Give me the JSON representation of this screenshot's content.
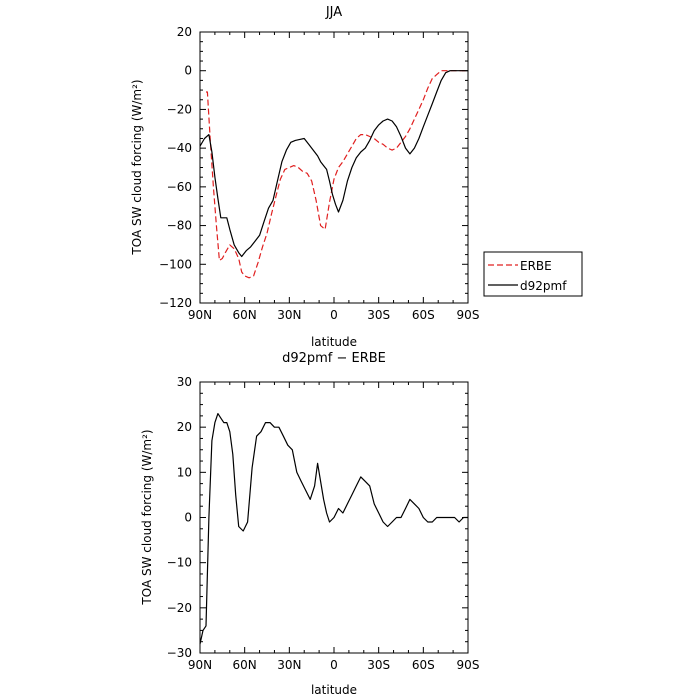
{
  "chart_data": [
    {
      "type": "line",
      "title": "JJA",
      "xlabel": "latitude",
      "ylabel": "TOA SW cloud forcing (W/m²)",
      "xlim": [
        90,
        -90
      ],
      "ylim": [
        -120,
        20
      ],
      "x_ticks": [
        90,
        60,
        30,
        0,
        -30,
        -60,
        -90
      ],
      "x_tick_labels": [
        "90N",
        "60N",
        "30N",
        "0",
        "30S",
        "60S",
        "90S"
      ],
      "y_ticks": [
        20,
        0,
        -20,
        -40,
        -60,
        -80,
        -100,
        -120
      ],
      "y_tick_labels": [
        "20",
        "0",
        "−20",
        "−40",
        "−60",
        "−80",
        "−100",
        "−120"
      ],
      "legend_position": "outside-right",
      "series": [
        {
          "name": "ERBE",
          "color": "#e02020",
          "dash": "dashed",
          "x": [
            86,
            85,
            83,
            81,
            79,
            77,
            75,
            73,
            70,
            67,
            64,
            62,
            60,
            57,
            54,
            51,
            48,
            45,
            42,
            39,
            36,
            33,
            30,
            27,
            24,
            21,
            18,
            15,
            12,
            9,
            6,
            3,
            0,
            -3,
            -6,
            -9,
            -12,
            -15,
            -18,
            -21,
            -24,
            -27,
            -30,
            -33,
            -36,
            -39,
            -42,
            -45,
            -48,
            -51,
            -54,
            -57,
            -60,
            -63,
            -66,
            -69,
            -72,
            -75,
            -78,
            -81,
            -84,
            -87,
            -90
          ],
          "y": [
            -11,
            -11,
            -37,
            -60,
            -80,
            -98,
            -97,
            -94,
            -90,
            -92,
            -97,
            -104,
            -106,
            -107,
            -106,
            -99,
            -91,
            -84,
            -74,
            -65,
            -56,
            -51,
            -50,
            -49,
            -50,
            -52,
            -53,
            -57,
            -67,
            -80,
            -82,
            -68,
            -56,
            -50,
            -47,
            -43,
            -39,
            -35,
            -33,
            -33,
            -34,
            -35,
            -37,
            -38,
            -40,
            -41,
            -40,
            -37,
            -34,
            -30,
            -25,
            -20,
            -15,
            -9,
            -4,
            -2,
            0,
            0,
            0,
            0,
            0,
            0,
            0
          ]
        },
        {
          "name": "d92pmf",
          "color": "#000000",
          "dash": "solid",
          "x": [
            90,
            87,
            84,
            82,
            80,
            78,
            76,
            74,
            72,
            70,
            67,
            64,
            62,
            59,
            56,
            53,
            50,
            47,
            44,
            41,
            38,
            35,
            32,
            29,
            26,
            23,
            20,
            17,
            14,
            11,
            9,
            7,
            5,
            3,
            1,
            -1,
            -3,
            -6,
            -9,
            -12,
            -15,
            -18,
            -21,
            -24,
            -27,
            -30,
            -33,
            -36,
            -39,
            -42,
            -45,
            -48,
            -51,
            -54,
            -57,
            -60,
            -63,
            -66,
            -69,
            -72,
            -75,
            -78,
            -81,
            -84,
            -87,
            -90
          ],
          "y": [
            -39,
            -35,
            -33,
            -42,
            -55,
            -66,
            -76,
            -76,
            -76,
            -82,
            -90,
            -94,
            -96,
            -93,
            -91,
            -88,
            -85,
            -78,
            -71,
            -67,
            -57,
            -47,
            -41,
            -37,
            -36,
            -35.5,
            -35,
            -38,
            -41,
            -44,
            -47,
            -49,
            -51,
            -57,
            -64,
            -69,
            -73,
            -67,
            -57,
            -50,
            -45,
            -42,
            -40,
            -36,
            -31,
            -28,
            -26,
            -25,
            -26,
            -29,
            -34,
            -40,
            -43,
            -40,
            -35,
            -29,
            -23,
            -17,
            -11,
            -5,
            -1,
            0,
            0,
            0,
            0,
            0
          ]
        }
      ]
    },
    {
      "type": "line",
      "title": "d92pmf − ERBE",
      "xlabel": "latitude",
      "ylabel": "TOA SW cloud forcing (W/m²)",
      "xlim": [
        90,
        -90
      ],
      "ylim": [
        -30,
        30
      ],
      "x_ticks": [
        90,
        60,
        30,
        0,
        -30,
        -60,
        -90
      ],
      "x_tick_labels": [
        "90N",
        "60N",
        "30N",
        "0",
        "30S",
        "60S",
        "90S"
      ],
      "y_ticks": [
        30,
        20,
        10,
        0,
        -10,
        -20,
        -30
      ],
      "y_tick_labels": [
        "30",
        "20",
        "10",
        "0",
        "−10",
        "−20",
        "−30"
      ],
      "series": [
        {
          "color": "#000000",
          "dash": "solid",
          "x": [
            90,
            88,
            86,
            84,
            82,
            80,
            78,
            76,
            74,
            72,
            70,
            68,
            66,
            64,
            61,
            58,
            55,
            52,
            49,
            46,
            43,
            40,
            37,
            34,
            31,
            28,
            25,
            22,
            19,
            16,
            13,
            11,
            9,
            7,
            5,
            3,
            0,
            -3,
            -6,
            -9,
            -12,
            -15,
            -18,
            -21,
            -24,
            -27,
            -30,
            -33,
            -36,
            -39,
            -42,
            -45,
            -48,
            -51,
            -54,
            -57,
            -60,
            -63,
            -66,
            -69,
            -72,
            -75,
            -78,
            -81,
            -84,
            -87,
            -90
          ],
          "y": [
            -28,
            -25,
            -24,
            0,
            17,
            21,
            23,
            22,
            21,
            21,
            19,
            14,
            5,
            -2,
            -3,
            -1,
            11,
            18,
            19,
            21,
            21,
            20,
            20,
            18,
            16,
            15,
            10,
            8,
            6,
            4,
            7,
            12,
            8,
            4,
            1,
            -1,
            0,
            2,
            1,
            3,
            5,
            7,
            9,
            8,
            7,
            3,
            1,
            -1,
            -2,
            -1,
            0,
            0,
            2,
            4,
            3,
            2,
            0,
            -1,
            -1,
            0,
            0,
            0,
            0,
            0,
            -1,
            0,
            0
          ]
        }
      ]
    }
  ]
}
